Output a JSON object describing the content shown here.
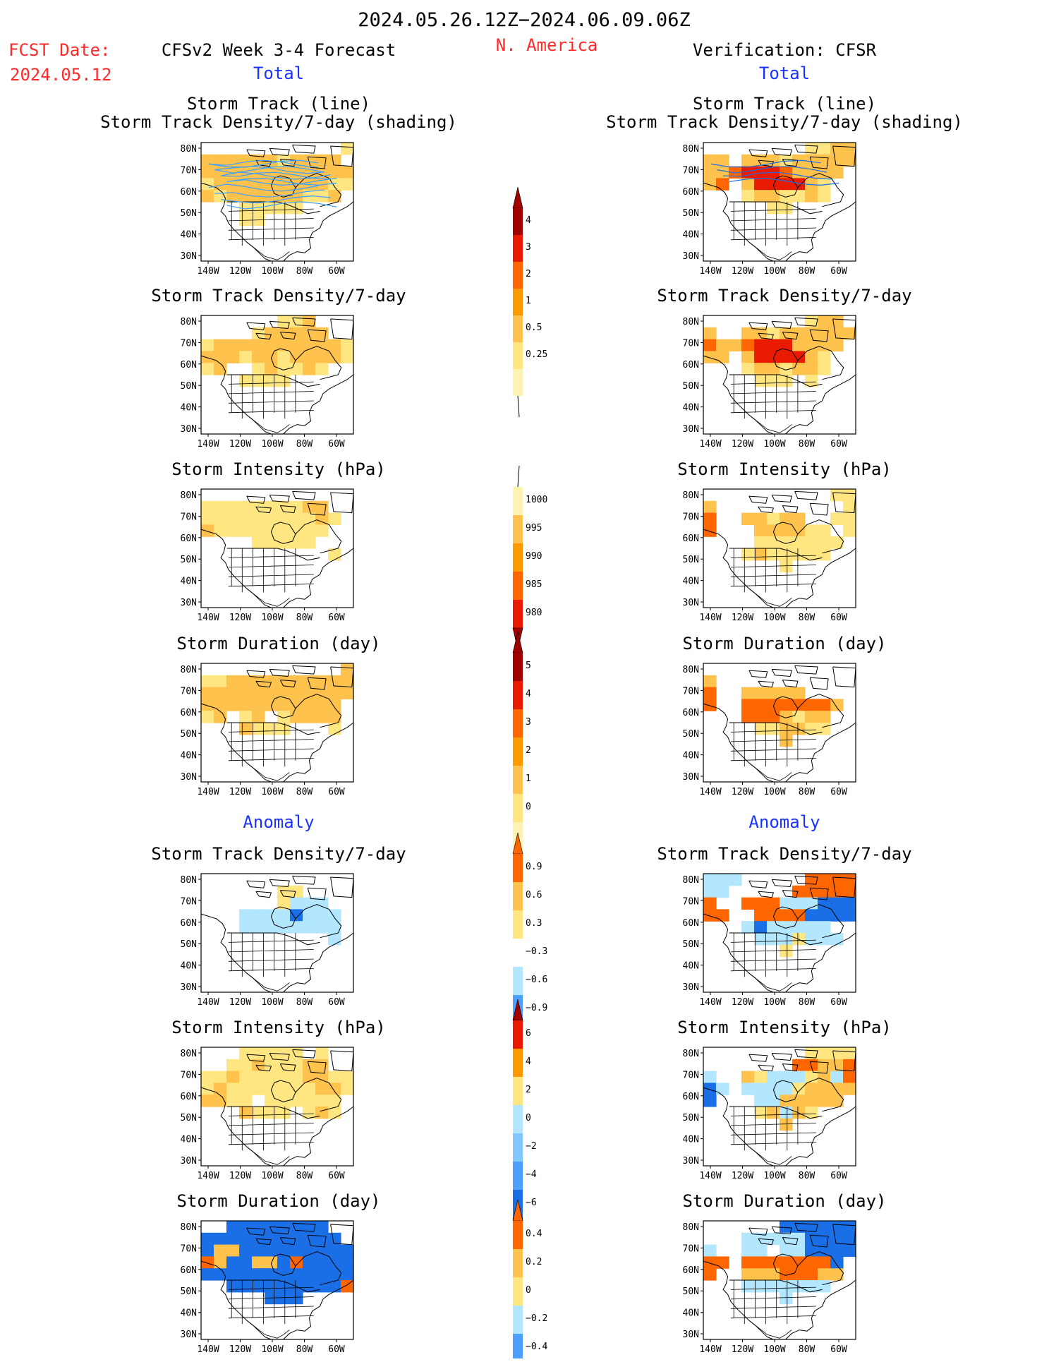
{
  "header": {
    "date_range": "2024.05.26.12Z−2024.06.09.06Z",
    "fcst_label": "FCST Date:",
    "fcst_date": "2024.05.12",
    "model_title": "CFSv2 Week 3-4 Forecast",
    "region": "N. America",
    "verification_title": "Verification: CFSR"
  },
  "section_labels": {
    "total_left": "Total",
    "total_right": "Total",
    "anomaly_left": "Anomaly",
    "anomaly_right": "Anomaly"
  },
  "panel_titles": {
    "track_line": "Storm Track (line)",
    "track_shading": "Storm Track Density/7-day (shading)",
    "density": "Storm Track Density/7-day",
    "intensity": "Storm Intensity (hPa)",
    "duration": "Storm Duration (day)"
  },
  "axes": {
    "lat_labels": [
      "80N",
      "70N",
      "60N",
      "50N",
      "40N",
      "30N"
    ],
    "lon_labels": [
      "140W",
      "120W",
      "100W",
      "80W",
      "60W"
    ]
  },
  "colorbars": {
    "density_total": [
      "4",
      "3",
      "2",
      "1",
      "0.5",
      "0.25"
    ],
    "intensity_total": [
      "1000",
      "995",
      "990",
      "985",
      "980"
    ],
    "duration_total": [
      "5",
      "4",
      "3",
      "2",
      "1",
      "0"
    ],
    "density_anomaly": [
      "0.9",
      "0.6",
      "0.3",
      "−0.3",
      "−0.6",
      "−0.9"
    ],
    "intensity_anomaly": [
      "6",
      "4",
      "2",
      "0",
      "−2",
      "−4",
      "−6"
    ],
    "duration_anomaly": [
      "0.4",
      "0.2",
      "0",
      "−0.2",
      "−0.4"
    ]
  },
  "colors": {
    "red_text": "#ff2a2a",
    "blue_text": "#1a33ff",
    "pale_yellow": "#fff3b3",
    "yellow": "#ffe680",
    "light_orange": "#ffc24d",
    "orange": "#ff9900",
    "dark_orange": "#ff6600",
    "red": "#e81a00",
    "dark_red": "#a10000",
    "light_blue": "#b3e6ff",
    "sky_blue": "#80c8ff",
    "mid_blue": "#4da0ff",
    "blue": "#1a6ee6",
    "deep_blue": "#0048c8"
  }
}
